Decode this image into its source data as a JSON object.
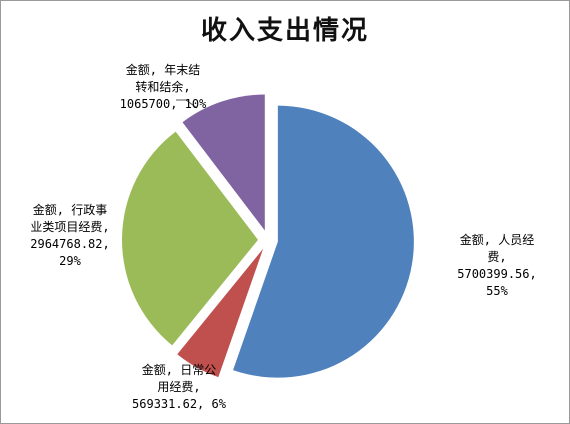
{
  "chart_data": {
    "type": "pie",
    "title": "收入支出情况",
    "series_name": "金额",
    "slices": [
      {
        "name": "人员经费",
        "value": 5700399.56,
        "percent": "55%",
        "color": "#4f81bd",
        "label_lines": [
          "金额, 人员经",
          "费,",
          "5700399.56,",
          "55%"
        ]
      },
      {
        "name": "日常公用经费",
        "value": 569331.62,
        "percent": "6%",
        "color": "#c0504d",
        "label_lines": [
          "金额, 日常公",
          "用经费,",
          "569331.62, 6%"
        ]
      },
      {
        "name": "行政事业类项目经费",
        "value": 2964768.82,
        "percent": "29%",
        "color": "#9bbb59",
        "label_lines": [
          "金额, 行政事",
          "业类项目经费,",
          "2964768.82,",
          "29%"
        ]
      },
      {
        "name": "年末结转和结余",
        "value": 1065700,
        "percent": "10%",
        "color": "#8064a2",
        "label_lines": [
          "金额, 年末结",
          "转和结余,",
          "1065700, 10%"
        ]
      }
    ]
  }
}
